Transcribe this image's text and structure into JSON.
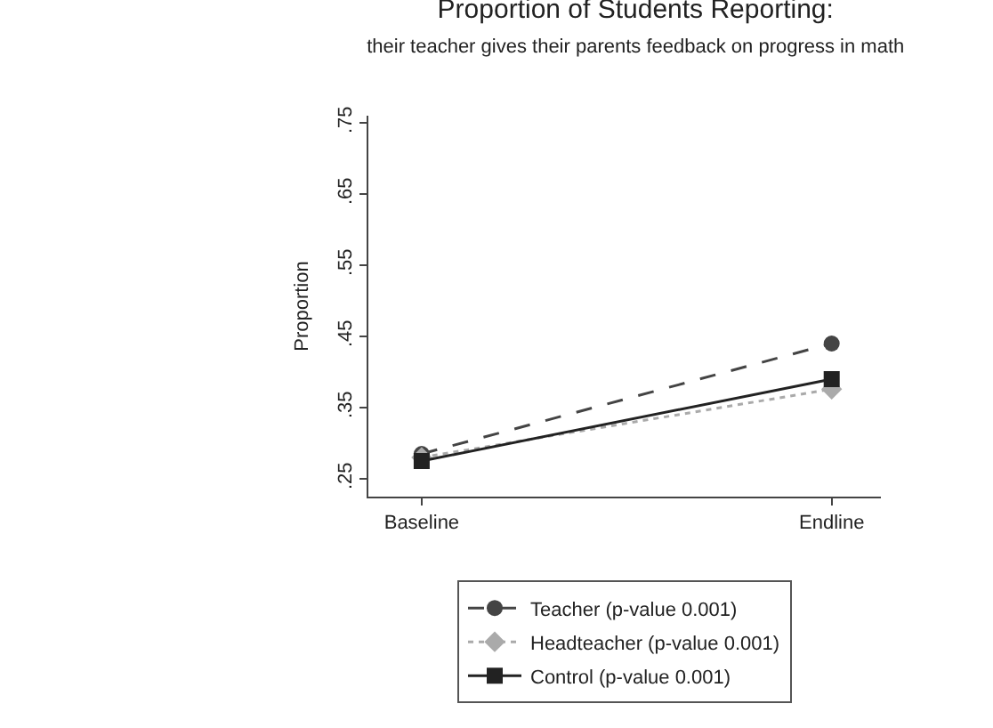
{
  "chart_data": {
    "type": "line",
    "title": "Proportion of Students Reporting:",
    "subtitle": "their teacher gives their parents feedback on progress in math",
    "ylabel": "Proportion",
    "categories": [
      "Baseline",
      "Endline"
    ],
    "series": [
      {
        "name": "Teacher (p-value 0.001)",
        "color": "#444444",
        "values": [
          0.285,
          0.44
        ],
        "line_style": "dashed",
        "marker": "circle"
      },
      {
        "name": "Headteacher (p-value 0.001)",
        "color": "#aaaaaa",
        "values": [
          0.28,
          0.376
        ],
        "line_style": "dotted",
        "marker": "diamond"
      },
      {
        "name": "Control (p-value 0.001)",
        "color": "#222222",
        "values": [
          0.275,
          0.39
        ],
        "line_style": "solid",
        "marker": "square"
      }
    ],
    "ylim": [
      0.225,
      0.76
    ],
    "yticks": [
      {
        "value": 0.25,
        "label": ".25"
      },
      {
        "value": 0.35,
        "label": ".35"
      },
      {
        "value": 0.45,
        "label": ".45"
      },
      {
        "value": 0.55,
        "label": ".55"
      },
      {
        "value": 0.65,
        "label": ".65"
      },
      {
        "value": 0.75,
        "label": ".75"
      }
    ],
    "grid": false,
    "legend": "bottom"
  }
}
